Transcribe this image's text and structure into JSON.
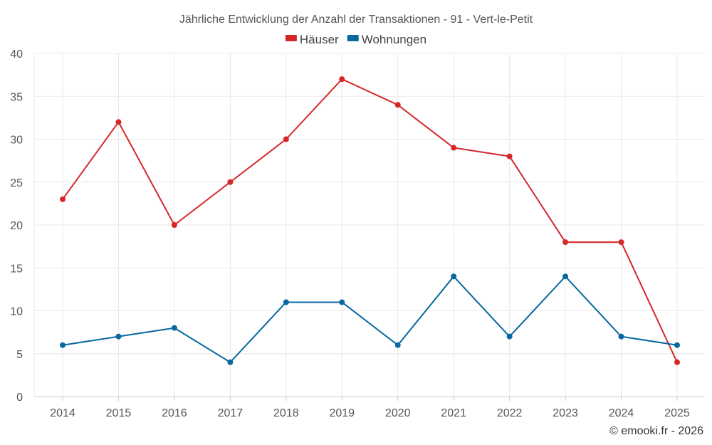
{
  "chart_data": {
    "type": "line",
    "title": "Jährliche Entwicklung der Anzahl der Transaktionen - 91 - Vert-le-Petit",
    "xlabel": "",
    "ylabel": "",
    "categories": [
      "2014",
      "2015",
      "2016",
      "2017",
      "2018",
      "2019",
      "2020",
      "2021",
      "2022",
      "2023",
      "2024",
      "2025"
    ],
    "series": [
      {
        "name": "Häuser",
        "color": "#d62728",
        "values": [
          23,
          32,
          20,
          25,
          30,
          37,
          34,
          29,
          28,
          18,
          18,
          4
        ]
      },
      {
        "name": "Wohnungen",
        "color": "#08689f",
        "values": [
          6,
          7,
          8,
          4,
          11,
          11,
          6,
          14,
          7,
          14,
          7,
          6
        ]
      }
    ],
    "ylim": [
      0,
      40
    ],
    "yticks": [
      0,
      5,
      10,
      15,
      20,
      25,
      30,
      35,
      40
    ],
    "grid": true,
    "legend_position": "top-center"
  },
  "credit": "© emooki.fr - 2026"
}
